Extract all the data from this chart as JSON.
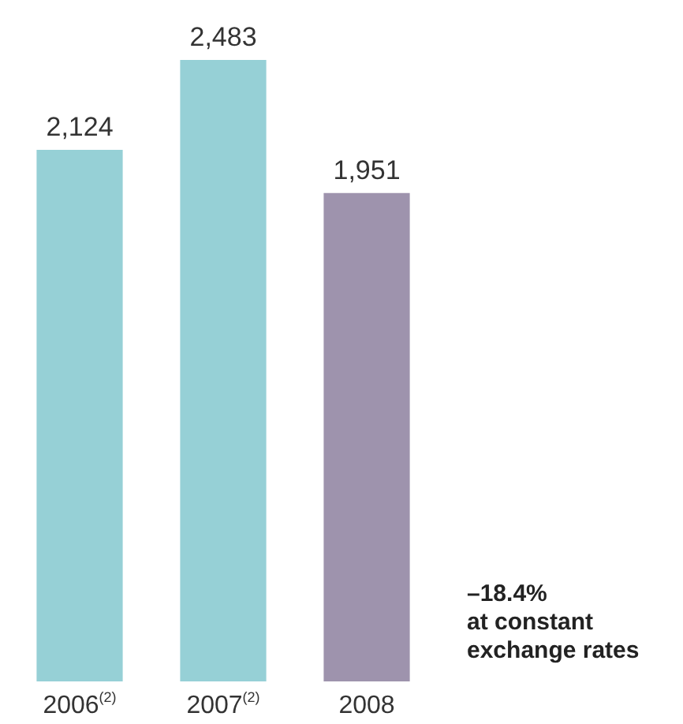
{
  "chart_data": {
    "type": "bar",
    "categories": [
      "2006$^{(2)}$",
      "2007$^{(2)}$",
      "2008"
    ],
    "values": [
      2124,
      2483,
      1951
    ],
    "colors": [
      "#96d0d6",
      "#96d0d6",
      "#9e93ad"
    ],
    "value_labels": [
      "2,124",
      "2,483",
      "1,951"
    ],
    "annotations": [
      "–18.4%\nat constant\nexchange rates"
    ],
    "legend": false
  }
}
